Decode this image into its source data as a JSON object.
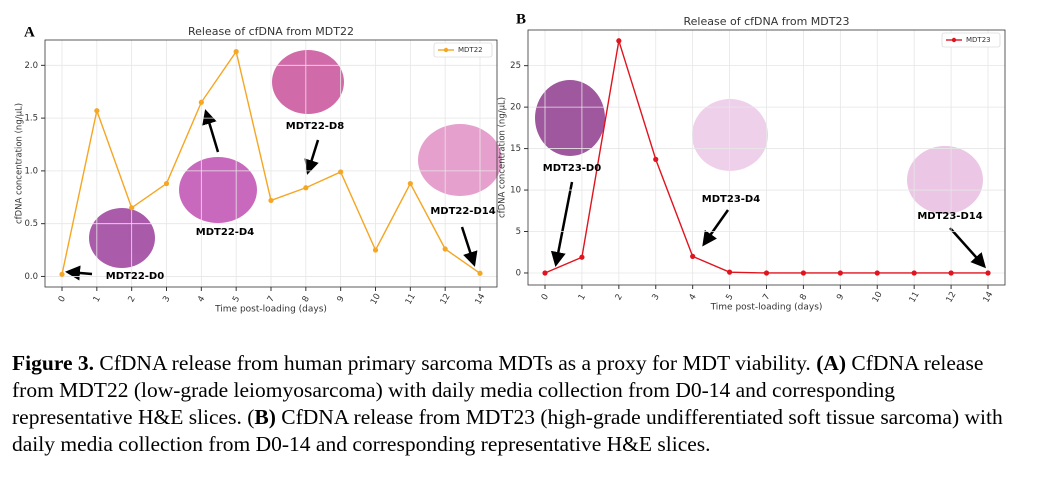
{
  "chart_data": [
    {
      "type": "line",
      "panel": "A",
      "title": "Release of cfDNA from MDT22",
      "x_label": "Time post-loading (days)",
      "y_label": "cfDNA concentration (ng/μL)",
      "categories": [
        "0",
        "1",
        "2",
        "3",
        "4",
        "5",
        "7",
        "8",
        "9",
        "10",
        "11",
        "12",
        "14"
      ],
      "series": [
        {
          "name": "MDT22",
          "color": "#f5a623",
          "values": [
            0.02,
            1.57,
            0.65,
            0.88,
            1.65,
            2.13,
            0.72,
            0.84,
            0.99,
            0.25,
            0.88,
            0.26,
            0.03
          ]
        }
      ],
      "ylim": [
        -0.1,
        2.24
      ],
      "yticks": [
        {
          "value": 0,
          "label": "0.0"
        },
        {
          "value": 0.5,
          "label": "0.5"
        },
        {
          "value": 1,
          "label": "1.0"
        },
        {
          "value": 1.5,
          "label": "1.5"
        },
        {
          "value": 2,
          "label": "2.0"
        }
      ],
      "grid": true,
      "legend": "upper right",
      "annotations": [
        "MDT22-D0",
        "MDT22-D4",
        "MDT22-D8",
        "MDT22-D14"
      ]
    },
    {
      "type": "line",
      "panel": "B",
      "title": "Release of cfDNA from MDT23",
      "x_label": "Time post-loading (days)",
      "y_label": "cfDNA concentration (ng/μL)",
      "categories": [
        "0",
        "1",
        "2",
        "3",
        "4",
        "5",
        "7",
        "8",
        "9",
        "10",
        "11",
        "12",
        "14"
      ],
      "series": [
        {
          "name": "MDT23",
          "color": "#e0141e",
          "values": [
            0,
            1.9,
            28,
            13.7,
            2,
            0.1,
            0,
            0,
            0,
            0,
            0,
            0,
            0
          ]
        }
      ],
      "ylim": [
        -1.45,
        29.3
      ],
      "yticks": [
        0,
        5,
        10,
        15,
        20,
        25
      ],
      "grid": true,
      "legend": "upper right",
      "annotations": [
        "MDT23-D0",
        "MDT23-D4",
        "MDT23-D14"
      ]
    }
  ],
  "caption": [
    "Figure 3.",
    " CfDNA release from human primary sarcoma MDTs as a proxy for MDT viability. ",
    "(A)",
    " CfDNA release from MDT22 (low-grade leiomyosarcoma) with daily media collection from D0-14 and corresponding representative H&E slices. (",
    "B)",
    " CfDNA release from MDT23 (high-grade undifferentiated soft tissue sarcoma) with daily media collection from D0-14 and corresponding representative H&E slices."
  ]
}
